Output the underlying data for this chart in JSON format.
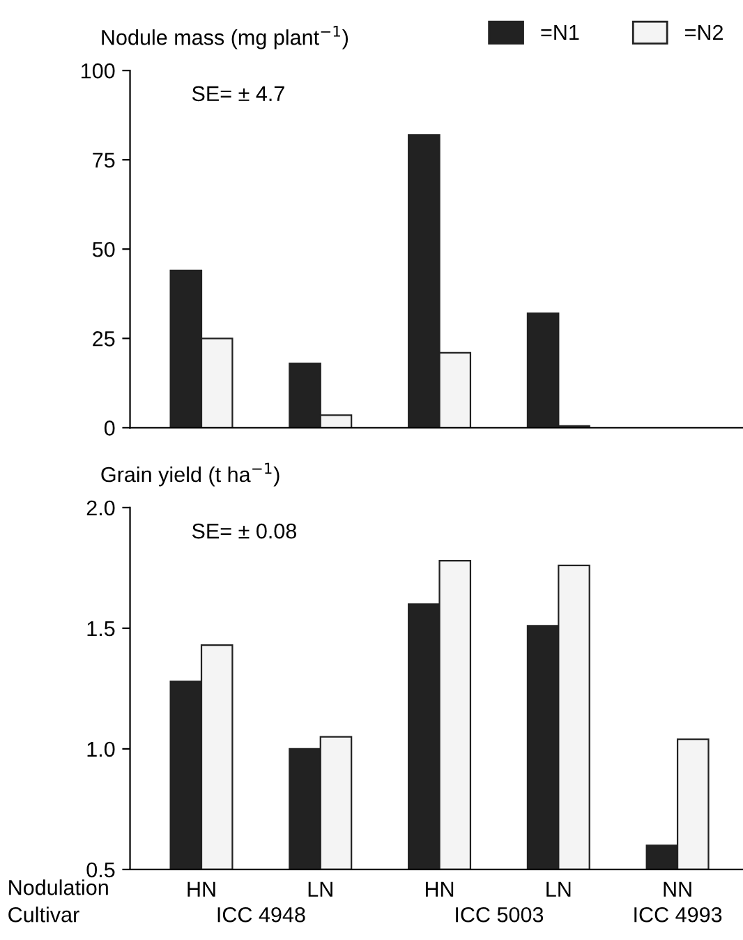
{
  "chart_data": [
    {
      "type": "bar",
      "title": "Nodule mass (mg plant$^{−1}$)",
      "categories": [
        null,
        null,
        null,
        null,
        null
      ],
      "series": [
        {
          "name": "=N1",
          "color": "#222222",
          "values": [
            44,
            18,
            82,
            32,
            0
          ]
        },
        {
          "name": "=N2",
          "color": "#f4f4f4",
          "values": [
            25,
            3.5,
            21,
            0.5,
            0
          ]
        }
      ],
      "ylim": [
        0,
        100
      ],
      "yticks": [
        0,
        25,
        50,
        75,
        100
      ],
      "legend": "top right",
      "grid": false,
      "annotations": [
        "SE= ± 4.7"
      ]
    },
    {
      "type": "bar",
      "title": "Grain yield (t ha$^{−1}$)",
      "categories": [
        "HN",
        "LN",
        "HN",
        "LN",
        "NN"
      ],
      "xlabel": "Nodulation",
      "series": [
        {
          "color": "#222222",
          "values": [
            1.28,
            1.0,
            1.6,
            1.51,
            0.6
          ]
        },
        {
          "color": "#f4f4f4",
          "values": [
            1.43,
            1.05,
            1.78,
            1.76,
            1.04
          ]
        }
      ],
      "ylim": [
        0.5,
        2.0
      ],
      "yticks": [
        {
          "value": 0.5,
          "label": "0.5"
        },
        {
          "value": 1.0,
          "label": "1.0"
        },
        {
          "value": 1.5,
          "label": "1.5"
        },
        {
          "value": 2.0,
          "label": "2.0"
        }
      ],
      "grid": false,
      "annotations": [
        "SE= ± 0.08",
        "Cultivar",
        "ICC 4948",
        "ICC 5003",
        "ICC 4993"
      ]
    }
  ]
}
